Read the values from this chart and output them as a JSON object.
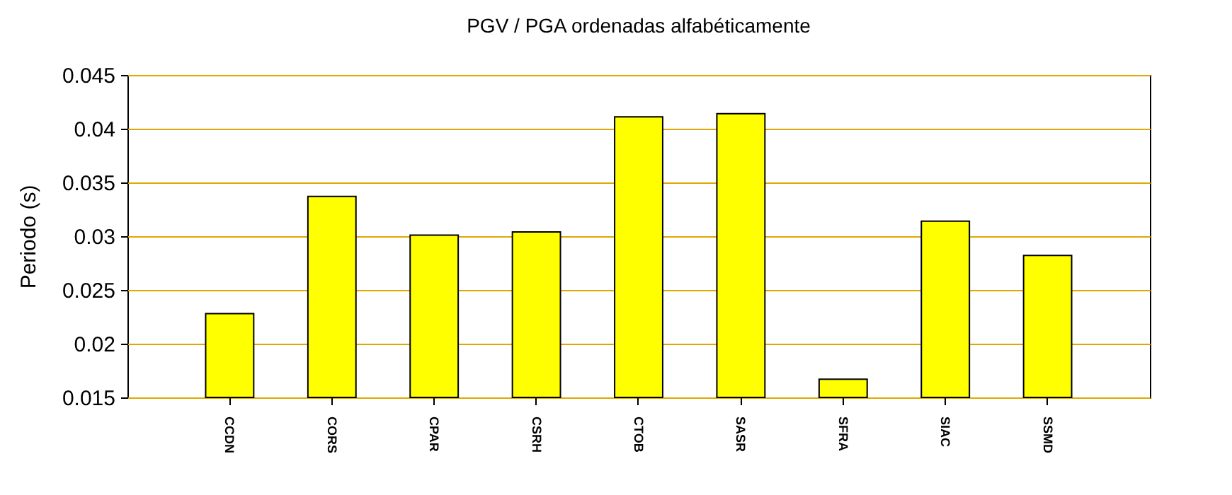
{
  "chart_data": {
    "type": "bar",
    "title": "PGV / PGA ordenadas alfabéticamente",
    "ylabel": "Periodo (s)",
    "categories": [
      "CCDN",
      "CORS",
      "CPAR",
      "CSRH",
      "CTOB",
      "SASR",
      "SFRA",
      "SIAC",
      "SSMD"
    ],
    "values": [
      0.0228,
      0.0337,
      0.0301,
      0.0304,
      0.0411,
      0.0414,
      0.0167,
      0.0314,
      0.0282
    ],
    "color": "#ffff00",
    "ylim": [
      0.015,
      0.045
    ],
    "yticks": [
      0.015,
      0.02,
      0.025,
      0.03,
      0.035,
      0.04,
      0.045
    ],
    "grid": "y"
  }
}
